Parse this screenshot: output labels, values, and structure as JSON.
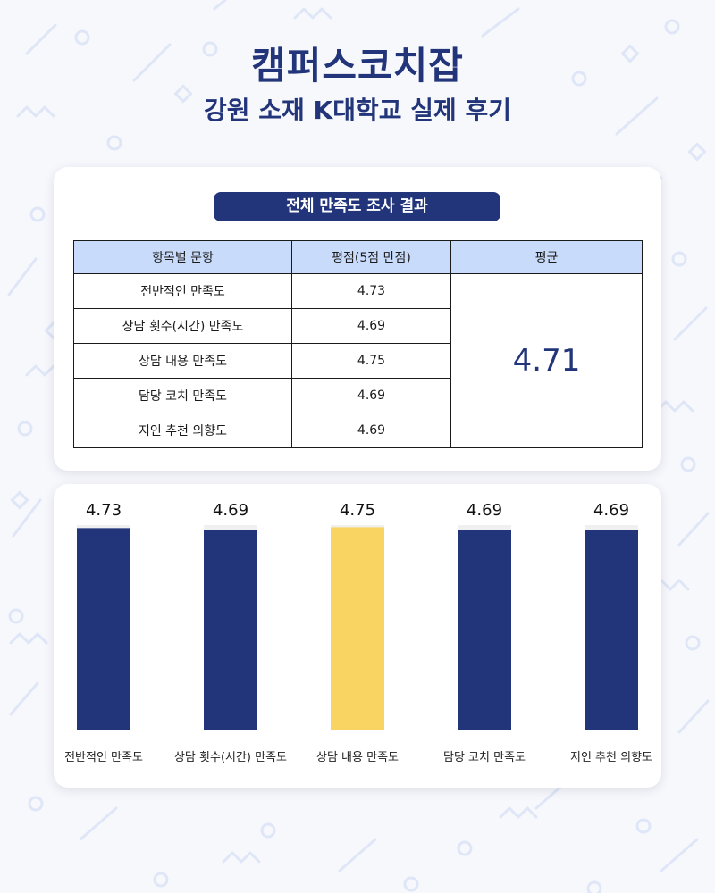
{
  "header": {
    "brand": "캠퍼스코치잡",
    "subtitle": "강원 소재 K대학교 실제 후기"
  },
  "table": {
    "title": "전체 만족도 조사 결과",
    "columns": [
      "항목별 문항",
      "평점(5점 만점)",
      "평균"
    ],
    "rows": [
      {
        "item": "전반적인 만족도",
        "score": "4.73"
      },
      {
        "item": "상담 횟수(시간) 만족도",
        "score": "4.69"
      },
      {
        "item": "상담 내용 만족도",
        "score": "4.75"
      },
      {
        "item": "담당 코치 만족도",
        "score": "4.69"
      },
      {
        "item": "지인 추천 의향도",
        "score": "4.69"
      }
    ],
    "average": "4.71"
  },
  "chart_data": {
    "type": "bar",
    "categories": [
      "전반적인 만족도",
      "상담 횟수(시간) 만족도",
      "상담 내용 만족도",
      "담당 코치 만족도",
      "지인 추천 의향도"
    ],
    "values": [
      4.73,
      4.69,
      4.75,
      4.69,
      4.69
    ],
    "data_labels": [
      "4.73",
      "4.69",
      "4.75",
      "4.69",
      "4.69"
    ],
    "ylim": [
      0,
      4.8
    ],
    "colors": [
      "#22357a",
      "#22357a",
      "#f9d463",
      "#22357a",
      "#22357a"
    ],
    "track_color": "#f0f0f0",
    "grid": false,
    "legend": "none"
  }
}
